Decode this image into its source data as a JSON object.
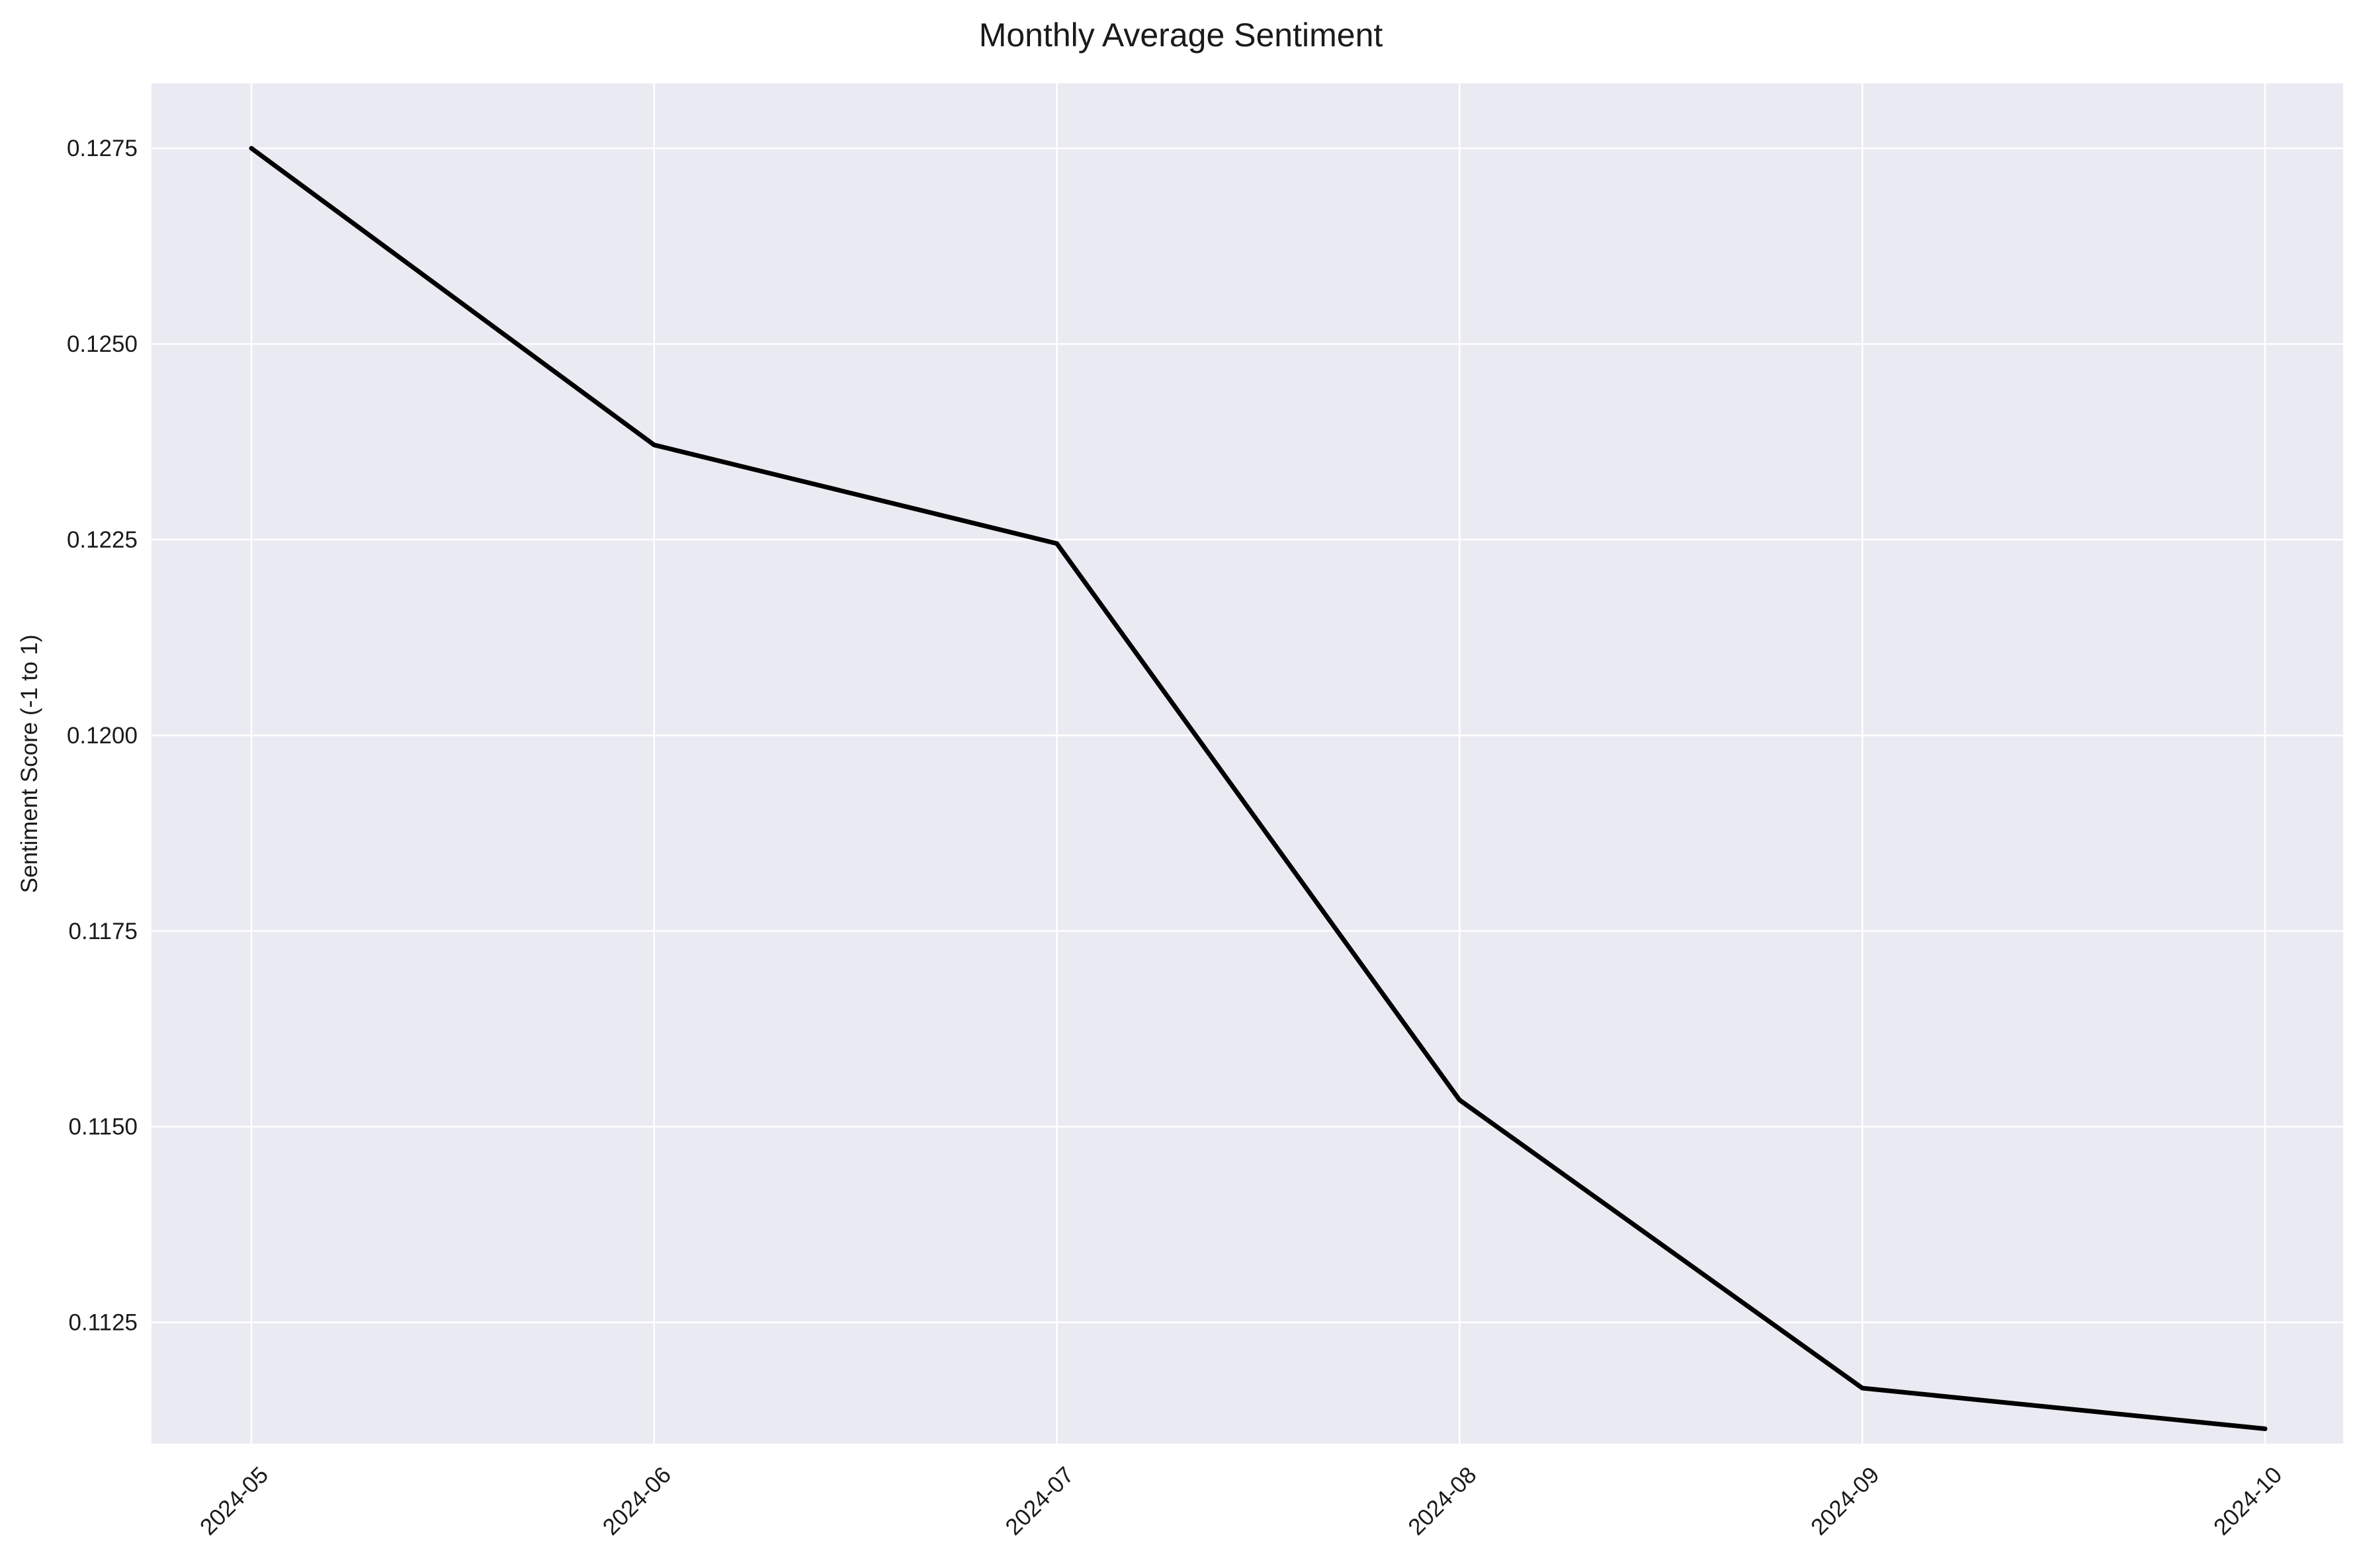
{
  "chart_data": {
    "type": "line",
    "title": "Monthly Average Sentiment",
    "xlabel": "",
    "ylabel": "Sentiment Score (-1 to 1)",
    "x": [
      "2024-05",
      "2024-06",
      "2024-07",
      "2024-08",
      "2024-09",
      "2024-10"
    ],
    "x_ticks": [
      "2024-05",
      "2024-06",
      "2024-07",
      "2024-08",
      "2024-09",
      "2024-10"
    ],
    "series": [
      {
        "values": [
          0.1275,
          0.12371,
          0.12245,
          0.11534,
          0.11166,
          0.11114
        ],
        "color": "#000000"
      }
    ],
    "ylim": [
      0.11095,
      0.12833
    ],
    "y_ticks": [
      0.1125,
      0.115,
      0.1175,
      0.12,
      0.1225,
      0.125,
      0.1275
    ],
    "y_tick_labels": [
      "0.1125",
      "0.1150",
      "0.1175",
      "0.1200",
      "0.1225",
      "0.1250",
      "0.1275"
    ],
    "grid": true,
    "legend": null,
    "colors": {
      "plot_background": "#eaeaf2",
      "grid": "#ffffff",
      "line": "#000000"
    }
  }
}
